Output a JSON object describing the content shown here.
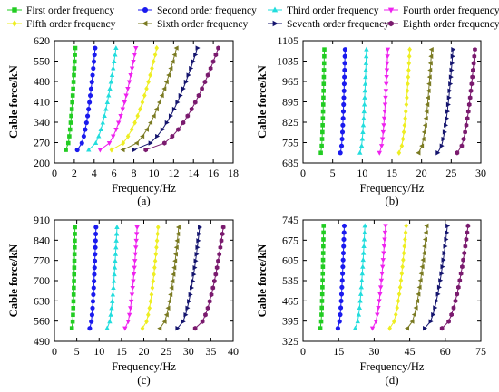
{
  "legend": {
    "placement": "top",
    "entries": [
      {
        "label": "First order frequency",
        "color": "#22cc22",
        "marker": "square"
      },
      {
        "label": "Second order frequency",
        "color": "#1a1aee",
        "marker": "circle"
      },
      {
        "label": "Third order frequency",
        "color": "#22dddd",
        "marker": "triangle-up"
      },
      {
        "label": "Fourth order frequency",
        "color": "#ee22ee",
        "marker": "triangle-down"
      },
      {
        "label": "Fifth order frequency",
        "color": "#eeee22",
        "marker": "diamond"
      },
      {
        "label": "Sixth order frequency",
        "color": "#7a7a22",
        "marker": "triangle-left"
      },
      {
        "label": "Seventh order frequency",
        "color": "#14146e",
        "marker": "triangle-right"
      },
      {
        "label": "Eighth order frequency",
        "color": "#7a1a6e",
        "marker": "hexagon"
      }
    ]
  },
  "chart_data": [
    {
      "type": "scatter",
      "caption": "(a)",
      "xlabel": "Frequency/Hz",
      "ylabel": "Cable force/kN",
      "xlim": [
        0,
        18
      ],
      "ylim": [
        200,
        620
      ],
      "xticks": [
        0,
        2,
        4,
        6,
        8,
        10,
        12,
        14,
        16,
        18
      ],
      "yticks": [
        200,
        270,
        340,
        410,
        480,
        550,
        620
      ],
      "points_per_series": 16,
      "series": [
        {
          "name": "First order frequency",
          "x_range": [
            1.15,
            2.1
          ],
          "y_range": [
            245,
            595
          ]
        },
        {
          "name": "Second order frequency",
          "x_range": [
            2.3,
            4.1
          ],
          "y_range": [
            245,
            595
          ]
        },
        {
          "name": "Third order frequency",
          "x_range": [
            3.45,
            6.2
          ],
          "y_range": [
            245,
            595
          ]
        },
        {
          "name": "Fourth order frequency",
          "x_range": [
            4.6,
            8.2
          ],
          "y_range": [
            245,
            595
          ]
        },
        {
          "name": "Fifth order frequency",
          "x_range": [
            5.75,
            10.3
          ],
          "y_range": [
            245,
            595
          ]
        },
        {
          "name": "Sixth order frequency",
          "x_range": [
            6.9,
            12.3
          ],
          "y_range": [
            245,
            595
          ]
        },
        {
          "name": "Seventh order frequency",
          "x_range": [
            8.0,
            14.4
          ],
          "y_range": [
            245,
            595
          ]
        },
        {
          "name": "Eighth order frequency",
          "x_range": [
            9.2,
            16.5
          ],
          "y_range": [
            245,
            595
          ]
        }
      ]
    },
    {
      "type": "scatter",
      "caption": "(b)",
      "xlabel": "Frequency/Hz",
      "ylabel": "Cable force/kN",
      "xlim": [
        0,
        30
      ],
      "ylim": [
        685,
        1105
      ],
      "xticks": [
        0,
        5,
        10,
        15,
        20,
        25,
        30
      ],
      "yticks": [
        685,
        755,
        825,
        895,
        965,
        1035,
        1105
      ],
      "points_per_series": 16,
      "series": [
        {
          "name": "First order frequency",
          "x_range": [
            3.0,
            3.6
          ],
          "y_range": [
            720,
            1075
          ]
        },
        {
          "name": "Second order frequency",
          "x_range": [
            6.3,
            7.1
          ],
          "y_range": [
            720,
            1075
          ]
        },
        {
          "name": "Third order frequency",
          "x_range": [
            9.6,
            10.7
          ],
          "y_range": [
            720,
            1075
          ]
        },
        {
          "name": "Fourth order frequency",
          "x_range": [
            12.9,
            14.3
          ],
          "y_range": [
            720,
            1075
          ]
        },
        {
          "name": "Fifth order frequency",
          "x_range": [
            16.2,
            18.0
          ],
          "y_range": [
            720,
            1075
          ]
        },
        {
          "name": "Sixth order frequency",
          "x_range": [
            19.5,
            21.7
          ],
          "y_range": [
            720,
            1075
          ]
        },
        {
          "name": "Seventh order frequency",
          "x_range": [
            22.7,
            25.3
          ],
          "y_range": [
            720,
            1075
          ]
        },
        {
          "name": "Eighth order frequency",
          "x_range": [
            26.0,
            29.0
          ],
          "y_range": [
            720,
            1075
          ]
        }
      ]
    },
    {
      "type": "scatter",
      "caption": "(c)",
      "xlabel": "Frequency/Hz",
      "ylabel": "Cable force/kN",
      "xlim": [
        0,
        40
      ],
      "ylim": [
        490,
        910
      ],
      "xticks": [
        0,
        5,
        10,
        15,
        20,
        25,
        30,
        35,
        40
      ],
      "yticks": [
        490,
        560,
        630,
        700,
        770,
        840,
        910
      ],
      "points_per_series": 16,
      "series": [
        {
          "name": "First order frequency",
          "x_range": [
            3.9,
            4.6
          ],
          "y_range": [
            535,
            885
          ]
        },
        {
          "name": "Second order frequency",
          "x_range": [
            7.9,
            9.3
          ],
          "y_range": [
            535,
            885
          ]
        },
        {
          "name": "Third order frequency",
          "x_range": [
            11.8,
            14.0
          ],
          "y_range": [
            535,
            885
          ]
        },
        {
          "name": "Fourth order frequency",
          "x_range": [
            15.8,
            18.5
          ],
          "y_range": [
            535,
            885
          ]
        },
        {
          "name": "Fifth order frequency",
          "x_range": [
            19.7,
            23.2
          ],
          "y_range": [
            535,
            885
          ]
        },
        {
          "name": "Sixth order frequency",
          "x_range": [
            23.6,
            27.8
          ],
          "y_range": [
            535,
            885
          ]
        },
        {
          "name": "Seventh order frequency",
          "x_range": [
            27.5,
            32.5
          ],
          "y_range": [
            535,
            885
          ]
        },
        {
          "name": "Eighth order frequency",
          "x_range": [
            31.5,
            37.8
          ],
          "y_range": [
            535,
            885
          ]
        }
      ]
    },
    {
      "type": "scatter",
      "caption": "(d)",
      "xlabel": "Frequency/Hz",
      "ylabel": "Cable force/kN",
      "xlim": [
        0,
        75
      ],
      "ylim": [
        325,
        745
      ],
      "xticks": [
        0,
        15,
        30,
        45,
        60,
        75
      ],
      "yticks": [
        325,
        395,
        465,
        535,
        605,
        675,
        745
      ],
      "points_per_series": 16,
      "series": [
        {
          "name": "First order frequency",
          "x_range": [
            7.3,
            8.7
          ],
          "y_range": [
            370,
            725
          ]
        },
        {
          "name": "Second order frequency",
          "x_range": [
            14.7,
            17.4
          ],
          "y_range": [
            370,
            725
          ]
        },
        {
          "name": "Third order frequency",
          "x_range": [
            22.0,
            26.1
          ],
          "y_range": [
            370,
            725
          ]
        },
        {
          "name": "Fourth order frequency",
          "x_range": [
            29.3,
            34.8
          ],
          "y_range": [
            370,
            725
          ]
        },
        {
          "name": "Fifth order frequency",
          "x_range": [
            36.6,
            43.5
          ],
          "y_range": [
            370,
            725
          ]
        },
        {
          "name": "Sixth order frequency",
          "x_range": [
            44.0,
            52.2
          ],
          "y_range": [
            370,
            725
          ]
        },
        {
          "name": "Seventh order frequency",
          "x_range": [
            51.3,
            60.9
          ],
          "y_range": [
            370,
            725
          ]
        },
        {
          "name": "Eighth order frequency",
          "x_range": [
            58.6,
            69.6
          ],
          "y_range": [
            370,
            725
          ]
        }
      ]
    }
  ]
}
